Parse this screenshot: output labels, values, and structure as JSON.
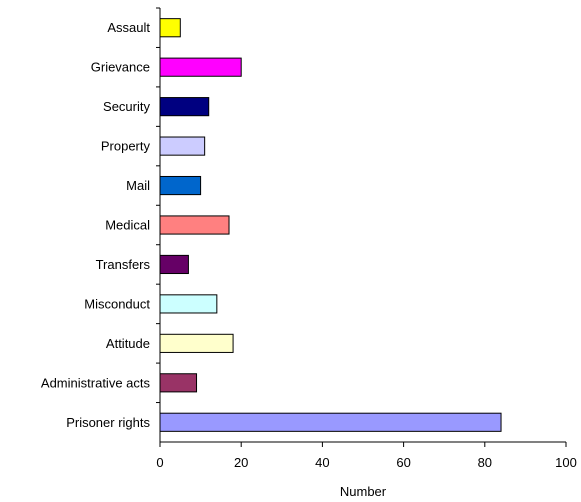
{
  "chart_data": {
    "type": "bar",
    "orientation": "horizontal",
    "categories": [
      "Assault",
      "Grievance",
      "Security",
      "Property",
      "Mail",
      "Medical",
      "Transfers",
      "Misconduct",
      "Attitude",
      "Administrative acts",
      "Prisoner rights"
    ],
    "values": [
      5,
      20,
      12,
      11,
      10,
      17,
      7,
      14,
      18,
      9,
      84
    ],
    "bar_colors": [
      "#ffff00",
      "#ff00ff",
      "#000080",
      "#ccccff",
      "#0066cc",
      "#ff8080",
      "#660066",
      "#ccffff",
      "#ffffcc",
      "#993366",
      "#9999ff"
    ],
    "xlabel": "Number",
    "ylabel": "",
    "title": "",
    "xlim": [
      0,
      100
    ],
    "xticks": [
      0,
      20,
      40,
      60,
      80,
      100
    ],
    "grid": false,
    "legend": "none"
  }
}
